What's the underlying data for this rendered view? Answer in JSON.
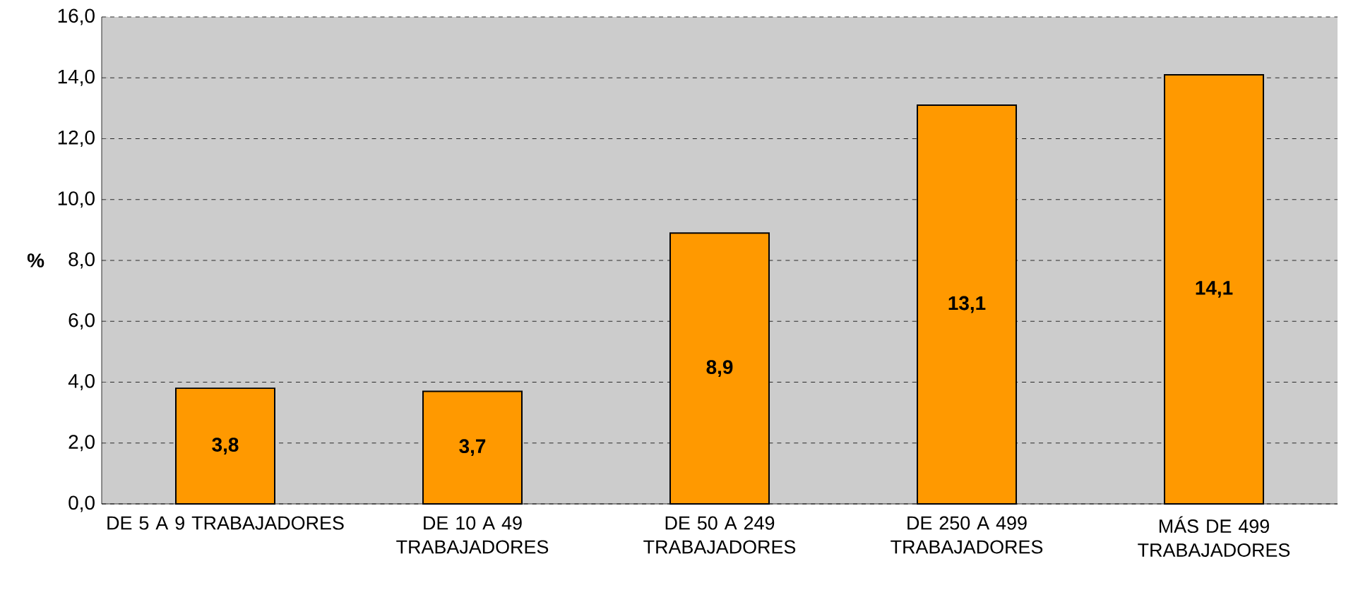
{
  "chart_data": {
    "type": "bar",
    "ylabel": "%",
    "categories": [
      "DE 5 A 9 TRABAJADORES",
      "DE 10 A 49 TRABAJADORES",
      "DE 50 A 249 TRABAJADORES",
      "DE 250 A 499 TRABAJADORES",
      "MÁS DE 499 TRABAJADORES"
    ],
    "values": [
      3.8,
      3.7,
      8.9,
      13.1,
      14.1
    ],
    "value_labels": [
      "3,8",
      "3,7",
      "8,9",
      "13,1",
      "14,1"
    ],
    "color": "#ff9900",
    "ylim": [
      0,
      16
    ],
    "yticks": [
      {
        "value": 0,
        "label": "0,0"
      },
      {
        "value": 2,
        "label": "2,0"
      },
      {
        "value": 4,
        "label": "4,0"
      },
      {
        "value": 6,
        "label": "6,0"
      },
      {
        "value": 8,
        "label": "8,0"
      },
      {
        "value": 10,
        "label": "10,0"
      },
      {
        "value": 12,
        "label": "12,0"
      },
      {
        "value": 14,
        "label": "14,0"
      },
      {
        "value": 16,
        "label": "16,0"
      }
    ],
    "grid": "y"
  }
}
